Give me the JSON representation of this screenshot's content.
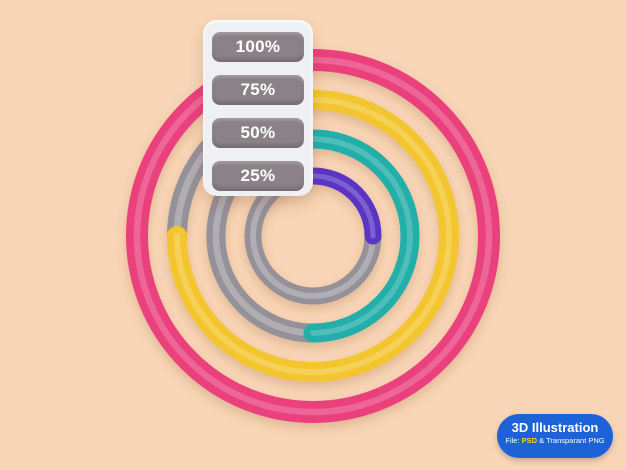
{
  "chart_data": {
    "type": "donut-rings",
    "categories": [
      "100%",
      "75%",
      "50%",
      "25%"
    ],
    "series": [
      {
        "label": "100%",
        "value": 100,
        "color": "#ea3f7c"
      },
      {
        "label": "75%",
        "value": 75,
        "color": "#f3c52e"
      },
      {
        "label": "50%",
        "value": 50,
        "color": "#24aea9"
      },
      {
        "label": "25%",
        "value": 25,
        "color": "#5a35c4"
      }
    ],
    "track_color": "#a9a5ad"
  },
  "labels": {
    "items": [
      {
        "text": "100%"
      },
      {
        "text": "75%"
      },
      {
        "text": "50%"
      },
      {
        "text": "25%"
      }
    ]
  },
  "badge": {
    "title": "3D Illustration",
    "file_prefix": "File: ",
    "psd": "PSD",
    "rest": " & Transparant PNG"
  }
}
